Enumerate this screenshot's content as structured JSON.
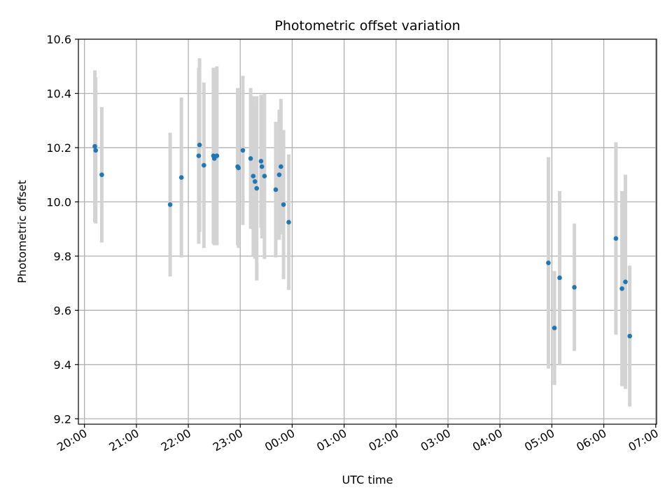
{
  "chart_data": {
    "type": "scatter",
    "title": "Photometric offset variation",
    "xlabel": "UTC time",
    "ylabel": "Photometric offset",
    "x_axis": "time",
    "xlim": [
      "19:53",
      "07:01"
    ],
    "ylim": [
      9.18,
      10.6
    ],
    "x_ticks": [
      "20:00",
      "21:00",
      "22:00",
      "23:00",
      "00:00",
      "01:00",
      "02:00",
      "03:00",
      "04:00",
      "05:00",
      "06:00",
      "07:00"
    ],
    "y_ticks": [
      "9.2",
      "9.4",
      "9.6",
      "9.8",
      "10.0",
      "10.2",
      "10.4",
      "10.6"
    ],
    "grid": true,
    "colors": {
      "points": "#1f77b4",
      "errorbars": "#d3d3d3",
      "grid": "#b0b0b0"
    },
    "points": [
      {
        "x": "20:12",
        "y": 10.205,
        "err": 0.28
      },
      {
        "x": "20:13",
        "y": 10.19,
        "err": 0.27
      },
      {
        "x": "20:20",
        "y": 10.1,
        "err": 0.25
      },
      {
        "x": "21:39",
        "y": 9.99,
        "err": 0.265
      },
      {
        "x": "21:52",
        "y": 10.09,
        "err": 0.295
      },
      {
        "x": "22:12",
        "y": 10.17,
        "err": 0.325
      },
      {
        "x": "22:13",
        "y": 10.21,
        "err": 0.32
      },
      {
        "x": "22:18",
        "y": 10.135,
        "err": 0.305
      },
      {
        "x": "22:29",
        "y": 10.17,
        "err": 0.325
      },
      {
        "x": "22:30",
        "y": 10.16,
        "err": 0.32
      },
      {
        "x": "22:33",
        "y": 10.17,
        "err": 0.33
      },
      {
        "x": "22:57",
        "y": 10.13,
        "err": 0.29
      },
      {
        "x": "22:58",
        "y": 10.125,
        "err": 0.295
      },
      {
        "x": "23:03",
        "y": 10.19,
        "err": 0.275
      },
      {
        "x": "23:12",
        "y": 10.16,
        "err": 0.26
      },
      {
        "x": "23:15",
        "y": 10.095,
        "err": 0.295
      },
      {
        "x": "23:17",
        "y": 10.075,
        "err": 0.285
      },
      {
        "x": "23:19",
        "y": 10.05,
        "err": 0.34
      },
      {
        "x": "23:24",
        "y": 10.15,
        "err": 0.245
      },
      {
        "x": "23:25",
        "y": 10.13,
        "err": 0.265
      },
      {
        "x": "23:28",
        "y": 10.095,
        "err": 0.305
      },
      {
        "x": "23:41",
        "y": 10.045,
        "err": 0.25
      },
      {
        "x": "23:45",
        "y": 10.1,
        "err": 0.24
      },
      {
        "x": "23:47",
        "y": 10.13,
        "err": 0.25
      },
      {
        "x": "23:50",
        "y": 9.99,
        "err": 0.275
      },
      {
        "x": "23:56",
        "y": 9.925,
        "err": 0.25
      },
      {
        "x": "04:56",
        "y": 9.775,
        "err": 0.39
      },
      {
        "x": "05:03",
        "y": 9.535,
        "err": 0.21
      },
      {
        "x": "05:09",
        "y": 9.72,
        "err": 0.32
      },
      {
        "x": "05:26",
        "y": 9.685,
        "err": 0.235
      },
      {
        "x": "06:14",
        "y": 9.865,
        "err": 0.355
      },
      {
        "x": "06:21",
        "y": 9.68,
        "err": 0.36
      },
      {
        "x": "06:25",
        "y": 9.705,
        "err": 0.395
      },
      {
        "x": "06:30",
        "y": 9.505,
        "err": 0.26
      }
    ]
  }
}
